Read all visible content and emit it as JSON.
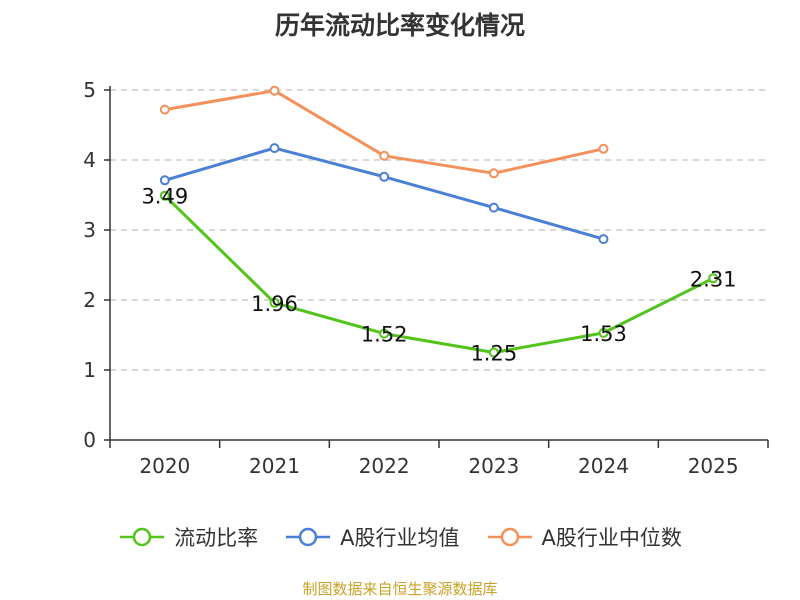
{
  "chart_data": {
    "type": "line",
    "title": "历年流动比率变化情况",
    "categories": [
      "2020",
      "2021",
      "2022",
      "2023",
      "2024",
      "2025"
    ],
    "ylim": [
      0,
      5
    ],
    "yticks": [
      "0",
      "1",
      "2",
      "3",
      "4",
      "5"
    ],
    "grid": true,
    "legend_position": "bottom",
    "series": [
      {
        "name": "流动比率",
        "color": "#52c41a",
        "values": [
          3.49,
          1.96,
          1.52,
          1.25,
          1.53,
          2.31
        ],
        "labels": [
          "3.49",
          "1.96",
          "1.52",
          "1.25",
          "1.53",
          "2.31"
        ]
      },
      {
        "name": "A股行业均值",
        "color": "#4a7fd6",
        "values": [
          3.71,
          4.17,
          3.76,
          3.32,
          2.87,
          null
        ]
      },
      {
        "name": "A股行业中位数",
        "color": "#f4905a",
        "values": [
          4.72,
          4.99,
          4.06,
          3.81,
          4.16,
          null
        ]
      }
    ]
  },
  "footer": {
    "source": "制图数据来自恒生聚源数据库"
  }
}
